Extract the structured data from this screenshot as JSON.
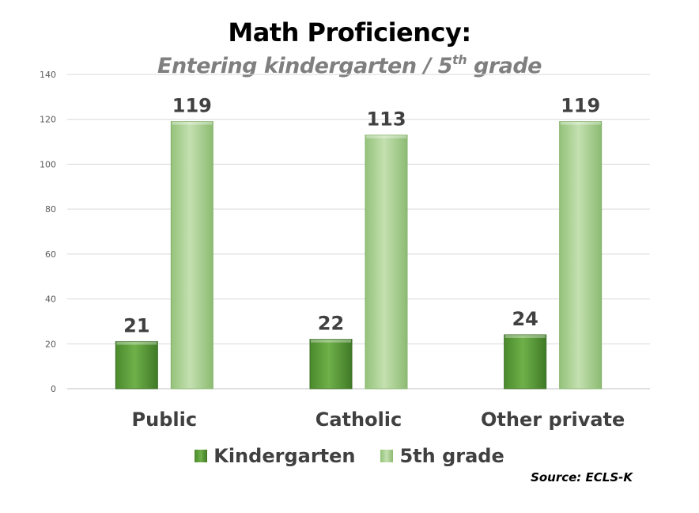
{
  "chart_data": {
    "type": "bar",
    "title": "Math Proficiency:",
    "subtitle_main": "Entering kindergarten / 5",
    "subtitle_sup": "th",
    "subtitle_end": " grade",
    "categories": [
      "Public",
      "Catholic",
      "Other private"
    ],
    "series": [
      {
        "name": "Kindergarten",
        "values": [
          21,
          22,
          24
        ],
        "color": "#5a9e3c"
      },
      {
        "name": "5th grade",
        "values": [
          119,
          113,
          119
        ],
        "color": "#a9d08e"
      }
    ],
    "ylim": [
      0,
      140
    ],
    "yticks": [
      0,
      20,
      40,
      60,
      80,
      100,
      120,
      140
    ],
    "grid": true,
    "legend_position": "bottom",
    "source": "Source: ECLS-K"
  }
}
